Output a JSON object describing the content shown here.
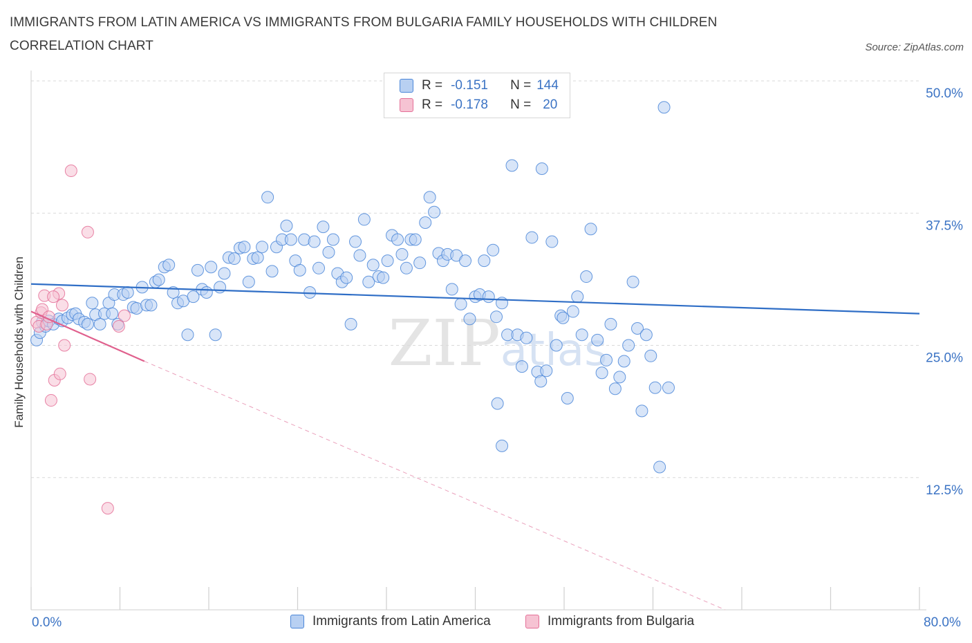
{
  "chart_data": {
    "type": "scatter",
    "title": "IMMIGRANTS FROM LATIN AMERICA VS IMMIGRANTS FROM BULGARIA FAMILY HOUSEHOLDS WITH CHILDREN CORRELATION CHART",
    "source": "Source: ZipAtlas.com",
    "xlabel": "",
    "ylabel": "Family Households with Children",
    "xlim": [
      0,
      80
    ],
    "ylim": [
      0,
      50
    ],
    "x_tick_labels": [
      "0.0%",
      "80.0%"
    ],
    "y_ticks": [
      12.5,
      25.0,
      37.5,
      50.0
    ],
    "y_tick_labels": [
      "12.5%",
      "25.0%",
      "37.5%",
      "50.0%"
    ],
    "watermark": "ZIPatlas",
    "legend": [
      {
        "name": "Immigrants from Latin America",
        "R_label": "R =",
        "R": "-0.151",
        "N_label": "N =",
        "N": "144"
      },
      {
        "name": "Immigrants from Bulgaria",
        "R_label": "R =",
        "R": "-0.178",
        "N_label": "N =",
        "N": "20"
      }
    ],
    "colors": {
      "latin": "#4a86d8",
      "latin_fill": "#b8d0f2",
      "bulgaria": "#e46f97",
      "bulgaria_fill": "#f6c3d3",
      "tick_text": "#3b73c4"
    },
    "series": [
      {
        "name": "Immigrants from Latin America",
        "trend": {
          "x": [
            0,
            80
          ],
          "y": [
            30.8,
            28.0
          ]
        },
        "points": [
          [
            0.5,
            25.5
          ],
          [
            0.8,
            26.2
          ],
          [
            1.0,
            27.2
          ],
          [
            1.3,
            26.8
          ],
          [
            1.6,
            27.3
          ],
          [
            2.0,
            27.0
          ],
          [
            2.5,
            27.5
          ],
          [
            2.8,
            27.3
          ],
          [
            3.3,
            27.6
          ],
          [
            3.7,
            27.9
          ],
          [
            4.0,
            28.0
          ],
          [
            4.3,
            27.5
          ],
          [
            4.8,
            27.2
          ],
          [
            5.1,
            27.0
          ],
          [
            5.5,
            29.0
          ],
          [
            5.8,
            27.9
          ],
          [
            6.2,
            27.0
          ],
          [
            6.6,
            28.0
          ],
          [
            7.0,
            29.0
          ],
          [
            7.3,
            28.0
          ],
          [
            7.5,
            29.8
          ],
          [
            7.8,
            27.0
          ],
          [
            8.3,
            29.8
          ],
          [
            8.7,
            30.0
          ],
          [
            9.2,
            28.6
          ],
          [
            9.5,
            28.5
          ],
          [
            10.0,
            30.5
          ],
          [
            10.4,
            28.8
          ],
          [
            10.8,
            28.8
          ],
          [
            11.2,
            31.0
          ],
          [
            11.5,
            31.2
          ],
          [
            12.0,
            32.4
          ],
          [
            12.4,
            32.6
          ],
          [
            12.8,
            30.0
          ],
          [
            13.2,
            29.0
          ],
          [
            13.7,
            29.2
          ],
          [
            14.1,
            26.0
          ],
          [
            14.6,
            29.6
          ],
          [
            15.0,
            32.1
          ],
          [
            15.4,
            30.3
          ],
          [
            15.8,
            30.0
          ],
          [
            16.2,
            32.4
          ],
          [
            16.6,
            26.0
          ],
          [
            17.0,
            30.5
          ],
          [
            17.4,
            31.8
          ],
          [
            17.8,
            33.3
          ],
          [
            18.3,
            33.2
          ],
          [
            18.8,
            34.2
          ],
          [
            19.2,
            34.3
          ],
          [
            19.6,
            31.0
          ],
          [
            20.0,
            33.2
          ],
          [
            20.4,
            33.3
          ],
          [
            20.8,
            34.3
          ],
          [
            21.3,
            39.0
          ],
          [
            21.7,
            32.0
          ],
          [
            22.1,
            34.3
          ],
          [
            22.6,
            35.0
          ],
          [
            23.0,
            36.3
          ],
          [
            23.4,
            35.0
          ],
          [
            23.8,
            33.0
          ],
          [
            24.2,
            32.1
          ],
          [
            24.6,
            35.0
          ],
          [
            25.1,
            30.0
          ],
          [
            25.5,
            34.8
          ],
          [
            25.9,
            32.3
          ],
          [
            26.3,
            36.2
          ],
          [
            26.8,
            33.8
          ],
          [
            27.2,
            35.0
          ],
          [
            27.6,
            31.8
          ],
          [
            28.0,
            31.0
          ],
          [
            28.4,
            31.4
          ],
          [
            28.8,
            27.0
          ],
          [
            29.2,
            34.8
          ],
          [
            29.6,
            33.5
          ],
          [
            30.0,
            36.9
          ],
          [
            30.4,
            31.0
          ],
          [
            30.8,
            32.6
          ],
          [
            31.3,
            31.5
          ],
          [
            31.7,
            31.4
          ],
          [
            32.1,
            33.0
          ],
          [
            32.5,
            35.4
          ],
          [
            33.0,
            35.0
          ],
          [
            33.4,
            33.6
          ],
          [
            33.8,
            32.3
          ],
          [
            34.2,
            35.0
          ],
          [
            34.6,
            35.0
          ],
          [
            35.0,
            32.8
          ],
          [
            35.5,
            36.6
          ],
          [
            35.9,
            39.0
          ],
          [
            36.3,
            37.6
          ],
          [
            36.7,
            33.7
          ],
          [
            37.1,
            33.0
          ],
          [
            37.5,
            33.6
          ],
          [
            37.9,
            30.3
          ],
          [
            38.3,
            33.5
          ],
          [
            38.7,
            28.9
          ],
          [
            39.1,
            33.0
          ],
          [
            39.5,
            27.5
          ],
          [
            40.0,
            29.6
          ],
          [
            40.4,
            29.8
          ],
          [
            40.8,
            33.0
          ],
          [
            41.2,
            29.6
          ],
          [
            41.6,
            34.0
          ],
          [
            41.9,
            27.7
          ],
          [
            42.4,
            29.0
          ],
          [
            42.9,
            26.0
          ],
          [
            43.3,
            42.0
          ],
          [
            43.8,
            26.0
          ],
          [
            44.2,
            23.0
          ],
          [
            44.6,
            25.7
          ],
          [
            45.1,
            35.2
          ],
          [
            45.6,
            22.5
          ],
          [
            46.0,
            41.7
          ],
          [
            46.4,
            22.6
          ],
          [
            46.9,
            34.8
          ],
          [
            47.3,
            25.0
          ],
          [
            47.7,
            27.8
          ],
          [
            47.9,
            27.6
          ],
          [
            48.3,
            20.0
          ],
          [
            48.8,
            28.2
          ],
          [
            49.2,
            29.6
          ],
          [
            49.6,
            26.0
          ],
          [
            50.0,
            31.5
          ],
          [
            50.4,
            36.0
          ],
          [
            51.0,
            25.5
          ],
          [
            51.4,
            22.4
          ],
          [
            51.8,
            23.6
          ],
          [
            52.2,
            27.0
          ],
          [
            52.6,
            20.9
          ],
          [
            53.0,
            22.0
          ],
          [
            53.4,
            23.5
          ],
          [
            53.8,
            25.0
          ],
          [
            54.2,
            31.0
          ],
          [
            54.6,
            26.6
          ],
          [
            55.0,
            18.8
          ],
          [
            55.4,
            26.0
          ],
          [
            55.8,
            24.0
          ],
          [
            56.2,
            21.0
          ],
          [
            56.6,
            13.5
          ],
          [
            57.0,
            47.5
          ],
          [
            57.4,
            21.0
          ],
          [
            42.0,
            19.5
          ],
          [
            42.4,
            15.5
          ],
          [
            45.9,
            21.6
          ]
        ]
      },
      {
        "name": "Immigrants from Bulgaria",
        "trend": {
          "x": [
            0,
            10.2
          ],
          "y": [
            28.2,
            23.5
          ],
          "dashed_to": {
            "x": 62.5,
            "y": 0
          }
        },
        "points": [
          [
            0.5,
            27.2
          ],
          [
            0.7,
            26.8
          ],
          [
            0.9,
            28.1
          ],
          [
            1.0,
            28.4
          ],
          [
            1.2,
            29.7
          ],
          [
            1.4,
            27.0
          ],
          [
            1.6,
            27.7
          ],
          [
            1.8,
            19.8
          ],
          [
            2.1,
            21.7
          ],
          [
            2.5,
            29.9
          ],
          [
            2.6,
            22.3
          ],
          [
            2.8,
            28.8
          ],
          [
            3.0,
            25.0
          ],
          [
            3.6,
            41.5
          ],
          [
            5.1,
            35.7
          ],
          [
            5.3,
            21.8
          ],
          [
            7.9,
            26.8
          ],
          [
            8.4,
            27.8
          ],
          [
            6.9,
            9.6
          ],
          [
            2.0,
            29.6
          ]
        ]
      }
    ]
  }
}
